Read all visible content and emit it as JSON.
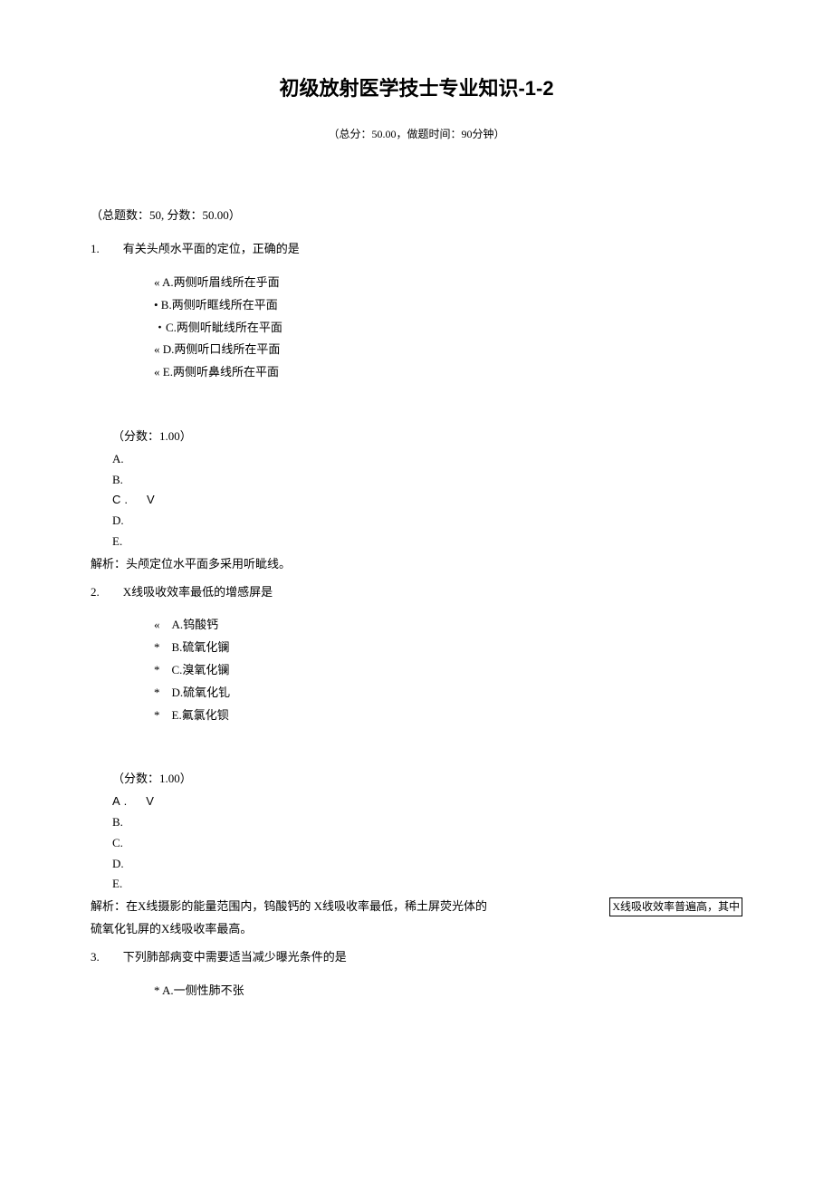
{
  "title": "初级放射医学技士专业知识-1-2",
  "subtitle": "（总分：50.00，做题时间：90分钟）",
  "section_info": "（总题数：50, 分数：50.00）",
  "q1": {
    "stem": "1.　　有关头颅水平面的定位，正确的是",
    "opts": [
      "« A.两侧听眉线所在乎面",
      "• B.两侧听眶线所在平面",
      "・C.两侧听眦线所在平面",
      "« D.两侧听口线所在平面",
      "« E.两侧听鼻线所在平面"
    ],
    "score": "（分数：1.00）",
    "answers": [
      "A.",
      "B.",
      "C.　V",
      "D.",
      "E."
    ],
    "explanation": "解析：头颅定位水平面多采用听眦线。"
  },
  "q2": {
    "stem": "2.　　X线吸收效率最低的增感屏是",
    "opts": [
      "«　A.钨酸钙",
      "*　B.硫氧化镧",
      "*　C.溴氧化镧",
      "*　D.硫氧化钆",
      "*　E.氟氯化钡"
    ],
    "score": "（分数：1.00）",
    "answers": [
      "A.　V",
      "B.",
      "C.",
      "D.",
      "E."
    ],
    "explanation_left": "解析：在X线摄影的能量范围内，钨酸钙的 X线吸收率最低，稀土屏荧光体的",
    "explanation_right": "X线吸收效率普遍高，其中",
    "explanation_line2": "硫氧化钆屏的X线吸收率最高。"
  },
  "q3": {
    "stem": "3.　　下列肺部病变中需要适当减少曝光条件的是",
    "opts": [
      "* A.一侧性肺不张"
    ]
  }
}
